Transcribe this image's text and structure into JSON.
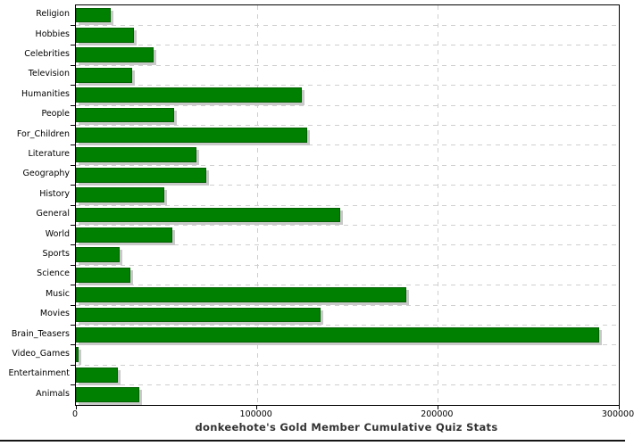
{
  "title": "donkeehote's Gold Member Cumulative Quiz Stats",
  "chart_data": {
    "type": "bar",
    "orientation": "horizontal",
    "title": "donkeehote's Gold Member Cumulative Quiz Stats",
    "xlabel": "",
    "ylabel": "",
    "categories": [
      "Religion",
      "Hobbies",
      "Celebrities",
      "Television",
      "Humanities",
      "People",
      "For_Children",
      "Literature",
      "Geography",
      "History",
      "General",
      "World",
      "Sports",
      "Science",
      "Music",
      "Movies",
      "Brain_Teasers",
      "Video_Games",
      "Entertainment",
      "Animals"
    ],
    "values": [
      19000,
      32000,
      43000,
      31000,
      125000,
      54500,
      128000,
      66500,
      72000,
      49000,
      146000,
      53500,
      24000,
      30000,
      182500,
      135000,
      289000,
      1500,
      23000,
      35000
    ],
    "xlim": [
      0,
      300000
    ],
    "x_ticks": [
      0,
      100000,
      200000,
      300000
    ],
    "x_tick_labels": [
      "0",
      "100000",
      "200000",
      "300000"
    ],
    "grid": "dashed",
    "gridline_color": "#cfcfcf",
    "legend": false,
    "colors": {
      "bar_fill": "#008000",
      "bar_border": "#026002",
      "bar_shadow": "#c9c9c9",
      "axis": "#000000",
      "title_text": "#333333",
      "background": "#ffffff"
    }
  }
}
